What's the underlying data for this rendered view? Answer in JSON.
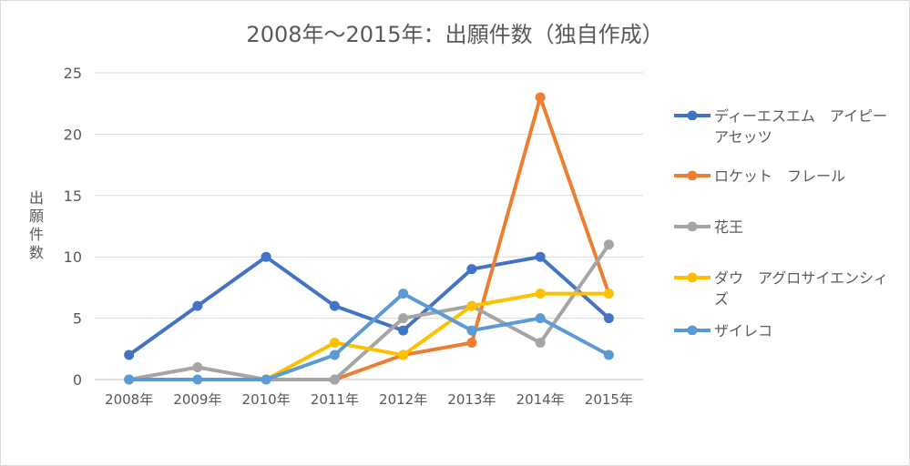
{
  "chart_data": {
    "type": "line",
    "title": "2008年～2015年：出願件数（独自作成）",
    "ylabel": "出願件数",
    "xlabel": "",
    "categories": [
      "2008年",
      "2009年",
      "2010年",
      "2011年",
      "2012年",
      "2013年",
      "2014年",
      "2015年"
    ],
    "ylim": [
      0,
      25
    ],
    "yticks": [
      "0",
      "5",
      "10",
      "15",
      "20",
      "25"
    ],
    "grid": true,
    "legend_position": "right",
    "series": [
      {
        "name": "ディーエスエム　アイピー　アセッツ",
        "color": "#4472c4",
        "values": [
          2,
          6,
          10,
          6,
          4,
          9,
          10,
          5
        ]
      },
      {
        "name": "ロケット　フレール",
        "color": "#ed7d31",
        "values": [
          null,
          null,
          null,
          0,
          2,
          3,
          23,
          7
        ]
      },
      {
        "name": "花王",
        "color": "#a5a5a5",
        "values": [
          0,
          1,
          0,
          0,
          5,
          6,
          3,
          11
        ]
      },
      {
        "name": "ダウ　アグロサイエンシィズ",
        "color": "#ffc000",
        "values": [
          null,
          null,
          0,
          3,
          2,
          6,
          7,
          7
        ]
      },
      {
        "name": "ザイレコ",
        "color": "#5b9bd5",
        "values": [
          0,
          0,
          0,
          2,
          7,
          4,
          5,
          2
        ]
      }
    ]
  }
}
